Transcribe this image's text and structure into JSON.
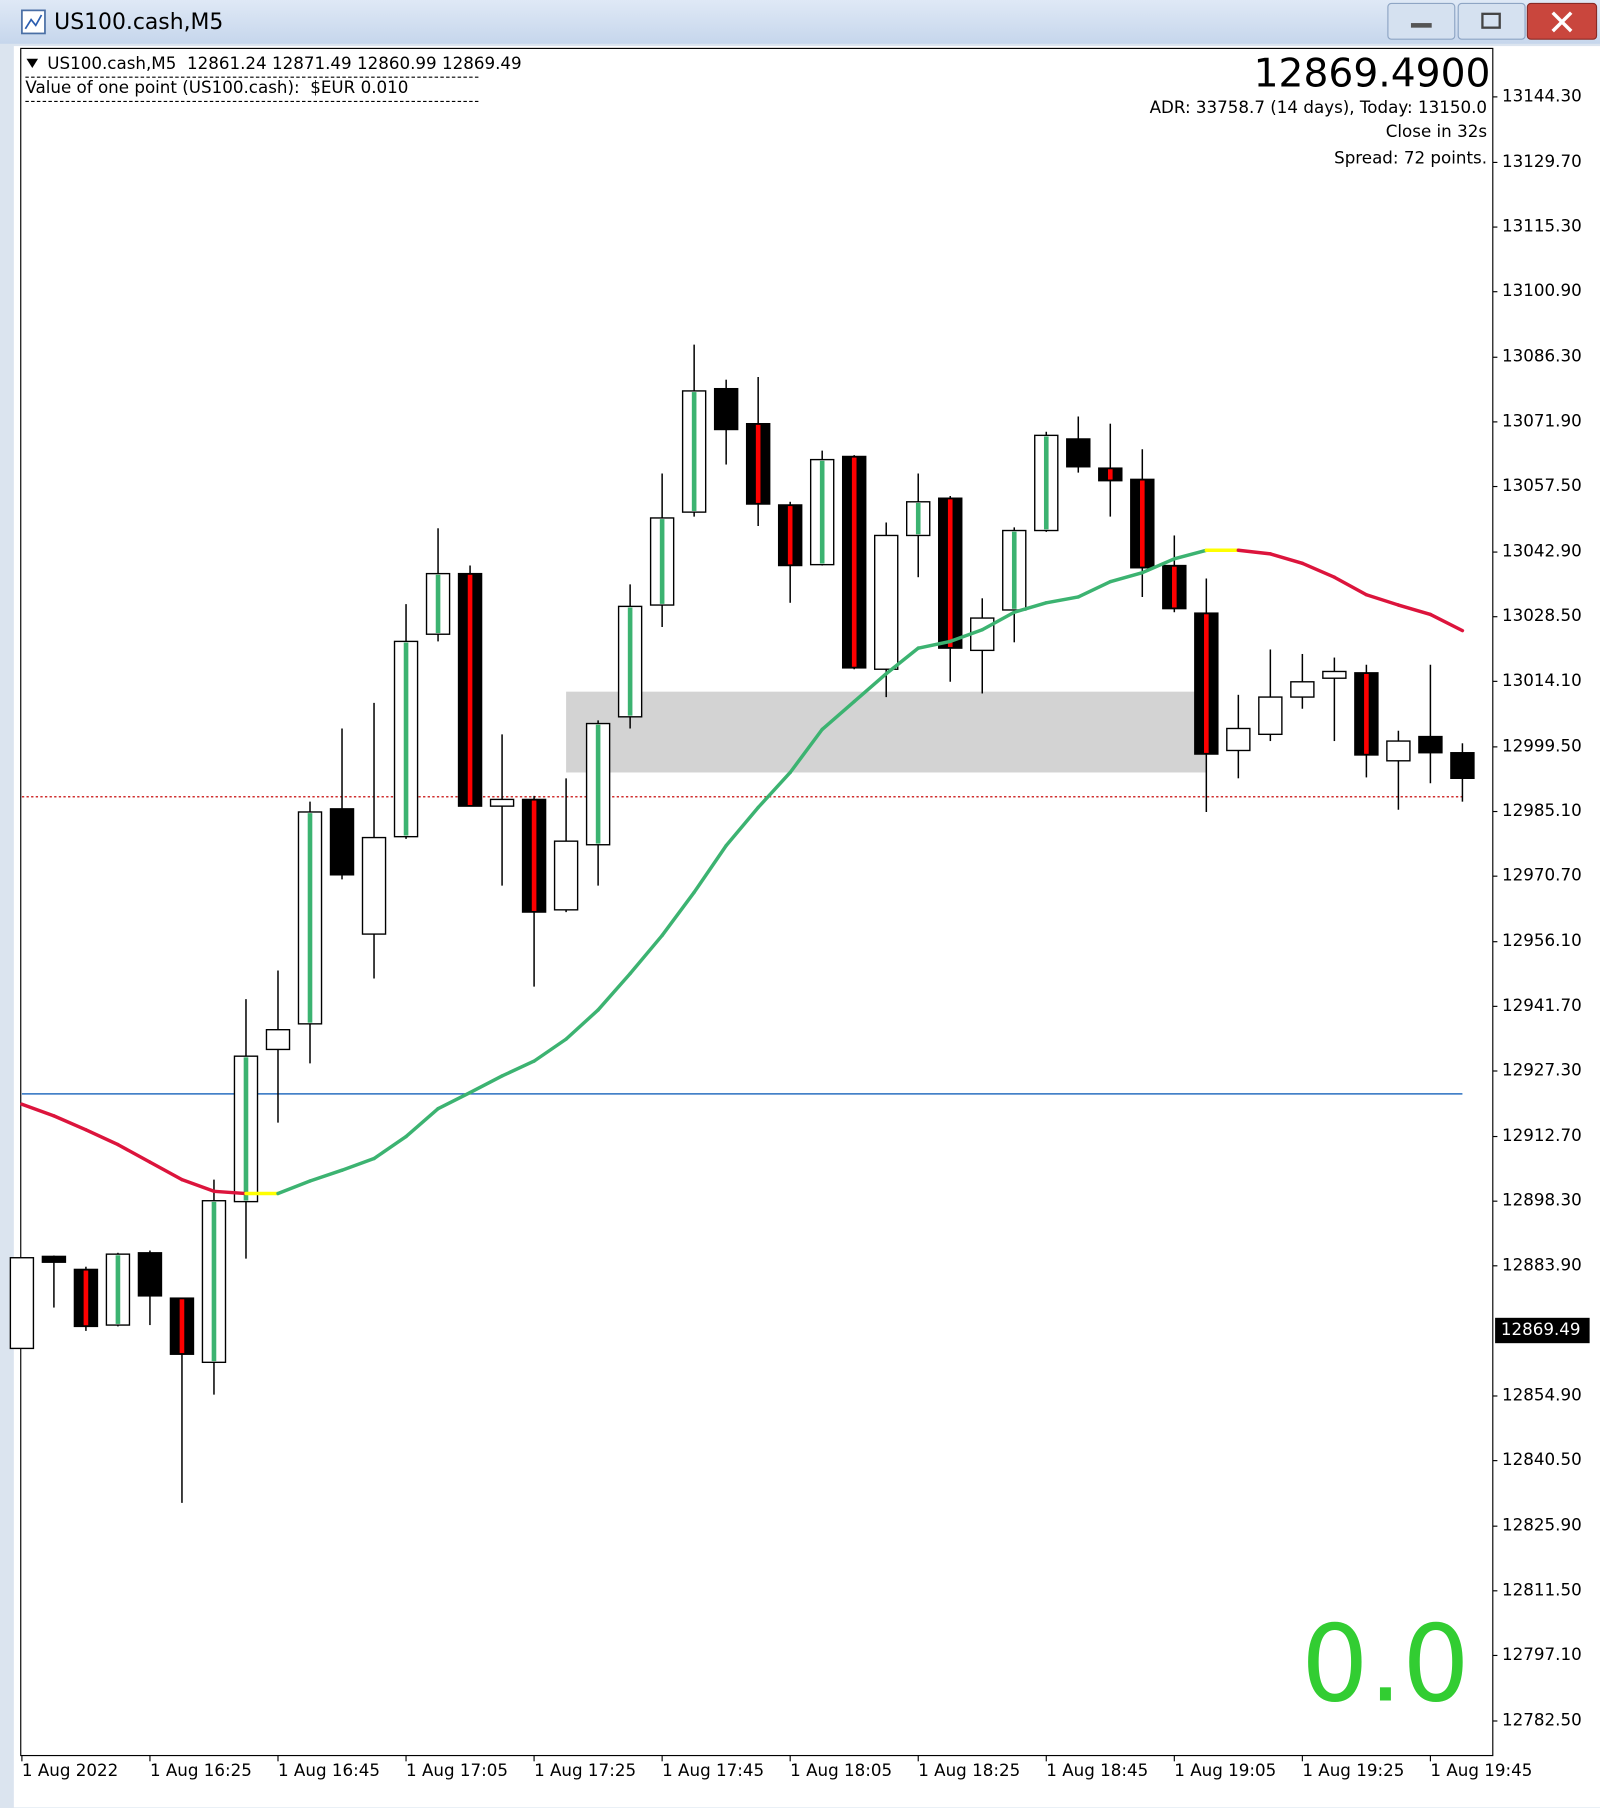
{
  "window": {
    "title": "US100.cash,M5"
  },
  "header": {
    "symbol_line": "US100.cash,M5  12861.24 12871.49 12860.99 12869.49",
    "point_value": "Value of one point (US100.cash):  $EUR 0.010",
    "price": "12869.4900",
    "adr": "ADR: 33758.7 (14 days), Today: 13150.0",
    "close_in": "Close in 32s",
    "spread": "Spread: 72 points.",
    "counter": "0.0"
  },
  "chart_data": {
    "type": "candlestick",
    "categories": [
      "1 Aug 2022",
      null,
      null,
      null,
      "1 Aug 16:25",
      null,
      null,
      null,
      "1 Aug 16:45",
      null,
      null,
      null,
      "1 Aug 17:05",
      null,
      null,
      null,
      "1 Aug 17:25",
      null,
      null,
      null,
      "1 Aug 17:45",
      null,
      null,
      null,
      "1 Aug 18:05",
      null,
      null,
      null,
      "1 Aug 18:25",
      null,
      null,
      null,
      "1 Aug 18:45",
      null,
      null,
      null,
      "1 Aug 19:05",
      null,
      null,
      null,
      "1 Aug 19:25",
      null,
      null,
      null,
      "1 Aug 19:45",
      null
    ],
    "open": [
      12865.5,
      12886.0,
      12883.1,
      12870.7,
      12886.8,
      12876.7,
      12862.4,
      12898.2,
      12932.1,
      12937.8,
      12985.7,
      12957.8,
      12979.5,
      13024.6,
      13038.1,
      12986.3,
      12987.8,
      12963.2,
      12977.7,
      13006.2,
      13031.1,
      13051.8,
      13079.3,
      13071.5,
      13053.4,
      13040.1,
      13064.2,
      13016.8,
      13046.6,
      13054.9,
      13021.0,
      13030.0,
      13047.7,
      13068.1,
      13061.6,
      13059.1,
      13039.9,
      13029.3,
      12998.7,
      13002.3,
      13010.6,
      13014.8,
      13016.0,
      12996.4,
      13001.8,
      12998.2
    ],
    "high": [
      12885.7,
      12886.2,
      12883.7,
      12886.8,
      12887.3,
      12876.7,
      12903.1,
      12943.3,
      12949.7,
      12987.3,
      13003.6,
      13009.3,
      13031.3,
      13048.2,
      13039.9,
      13002.3,
      12988.6,
      12992.5,
      13005.4,
      13035.7,
      13060.4,
      13089.1,
      13081.3,
      13081.9,
      13054.1,
      13065.5,
      13064.5,
      13049.5,
      13060.4,
      13055.4,
      13032.6,
      13048.4,
      13069.7,
      13073.1,
      13071.5,
      13065.8,
      13046.6,
      13037.0,
      13011.1,
      13021.2,
      13020.2,
      13019.4,
      13017.8,
      13003.1,
      13017.8,
      13000.3
    ],
    "low": [
      12865.5,
      12874.6,
      12869.4,
      12870.4,
      12870.7,
      12831.1,
      12855.2,
      12885.5,
      12915.8,
      12929.0,
      12970.0,
      12947.9,
      12979.0,
      13023.0,
      12986.3,
      12968.6,
      12946.1,
      12962.7,
      12968.6,
      13003.6,
      13026.2,
      13050.8,
      13062.4,
      13048.7,
      13031.6,
      13039.9,
      13016.8,
      13010.6,
      13037.3,
      13014.0,
      13011.4,
      13022.8,
      13047.4,
      13060.6,
      13050.8,
      13032.9,
      13029.5,
      12985.0,
      12992.5,
      13000.8,
      13008.0,
      13000.8,
      12992.7,
      12985.5,
      12991.4,
      12987.3
    ],
    "close": [
      12885.7,
      12884.7,
      12870.4,
      12886.5,
      12877.2,
      12864.2,
      12898.4,
      12930.6,
      12936.5,
      12985.0,
      12971.0,
      12979.3,
      13023.0,
      13038.1,
      12986.3,
      12987.8,
      12962.7,
      12978.5,
      13004.7,
      13030.8,
      13050.5,
      13078.8,
      13070.2,
      13053.6,
      13039.9,
      13063.5,
      13017.1,
      13046.6,
      13054.1,
      13021.5,
      13028.2,
      13047.7,
      13068.9,
      13061.9,
      13058.8,
      13039.4,
      13030.3,
      12997.9,
      13003.6,
      13010.6,
      13014.0,
      13016.3,
      12997.7,
      13000.8,
      12998.2,
      12992.5
    ],
    "stripe": [
      false,
      false,
      true,
      true,
      false,
      true,
      true,
      true,
      false,
      true,
      false,
      false,
      true,
      true,
      true,
      false,
      true,
      false,
      true,
      true,
      true,
      true,
      false,
      true,
      true,
      true,
      true,
      false,
      true,
      true,
      false,
      true,
      true,
      false,
      true,
      true,
      true,
      true,
      false,
      false,
      false,
      false,
      true,
      false,
      false,
      false
    ],
    "up_color": "#ffffff",
    "down_color": "#000000",
    "up_stripe_color": "#3cb371",
    "down_stripe_color": "#ff0000",
    "ma": {
      "values": [
        12919.9,
        12917.3,
        12914.2,
        12910.9,
        12907.0,
        12903.1,
        12900.5,
        12900.0,
        12900.0,
        12902.8,
        12905.2,
        12907.8,
        12912.7,
        12918.9,
        12922.5,
        12926.2,
        12929.5,
        12934.4,
        12940.9,
        12949.0,
        12957.5,
        12967.1,
        12977.5,
        12986.0,
        12993.8,
        13003.4,
        13009.6,
        13015.8,
        13021.5,
        13023.0,
        13025.6,
        13029.5,
        13031.6,
        13032.9,
        13036.3,
        13038.3,
        13041.4,
        13043.3,
        13043.3,
        13042.5,
        13040.4,
        13037.3,
        13033.4,
        13031.1,
        13029.0,
        13025.4
      ],
      "up_color": "#3cb371",
      "down_color": "#dc143c",
      "flat_color": "#ffff00"
    },
    "lines": [
      {
        "value": 12922.2,
        "color": "#2a6fc0",
        "style": "solid"
      },
      {
        "value": 12988.4,
        "color": "#d03030",
        "style": "dotted"
      }
    ],
    "zone": {
      "x": [
        17,
        37
      ],
      "y": [
        12993.8,
        13011.8
      ],
      "color": "#d3d3d3"
    },
    "price_marker": 12869.49,
    "ylim": [
      12774.8,
      13155.1
    ],
    "yticks": [
      {
        "value": 13144.3,
        "label": "13144.30"
      },
      {
        "value": 13129.7,
        "label": "13129.70"
      },
      {
        "value": 13115.3,
        "label": "13115.30"
      },
      {
        "value": 13100.9,
        "label": "13100.90"
      },
      {
        "value": 13086.3,
        "label": "13086.30"
      },
      {
        "value": 13071.9,
        "label": "13071.90"
      },
      {
        "value": 13057.5,
        "label": "13057.50"
      },
      {
        "value": 13042.9,
        "label": "13042.90"
      },
      {
        "value": 13028.5,
        "label": "13028.50"
      },
      {
        "value": 13014.1,
        "label": "13014.10"
      },
      {
        "value": 12999.5,
        "label": "12999.50"
      },
      {
        "value": 12985.1,
        "label": "12985.10"
      },
      {
        "value": 12970.7,
        "label": "12970.70"
      },
      {
        "value": 12956.1,
        "label": "12956.10"
      },
      {
        "value": 12941.7,
        "label": "12941.70"
      },
      {
        "value": 12927.3,
        "label": "12927.30"
      },
      {
        "value": 12912.7,
        "label": "12912.70"
      },
      {
        "value": 12898.3,
        "label": "12898.30"
      },
      {
        "value": 12883.9,
        "label": "12883.90"
      },
      {
        "value": 12854.9,
        "label": "12854.90"
      },
      {
        "value": 12840.5,
        "label": "12840.50"
      },
      {
        "value": 12825.9,
        "label": "12825.90"
      },
      {
        "value": 12811.5,
        "label": "12811.50"
      },
      {
        "value": 12797.1,
        "label": "12797.10"
      },
      {
        "value": 12782.5,
        "label": "12782.50"
      }
    ]
  }
}
